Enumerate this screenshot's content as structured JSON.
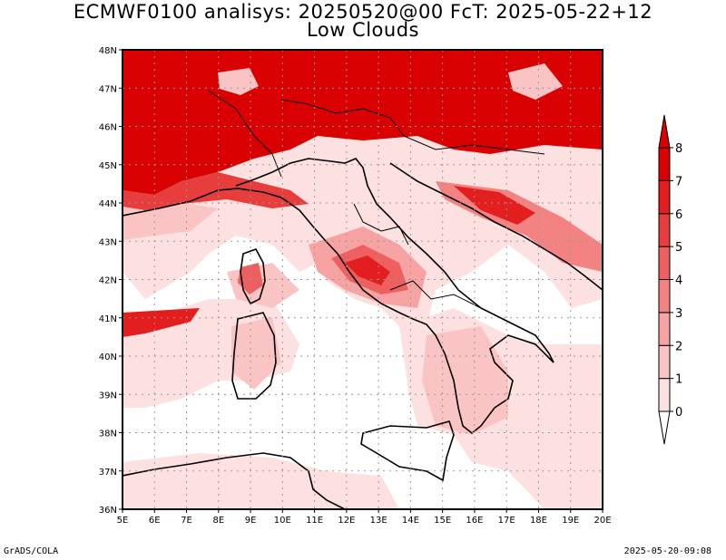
{
  "title": {
    "line1": "ECMWF0100 analisys: 20250520@00 FcT: 2025-05-22+12",
    "line2": "Low Clouds"
  },
  "axes": {
    "x_ticks": [
      "5E",
      "6E",
      "7E",
      "8E",
      "9E",
      "10E",
      "11E",
      "12E",
      "13E",
      "14E",
      "15E",
      "16E",
      "17E",
      "18E",
      "19E",
      "20E"
    ],
    "y_ticks": [
      "36N",
      "37N",
      "38N",
      "39N",
      "40N",
      "41N",
      "42N",
      "43N",
      "44N",
      "45N",
      "46N",
      "47N",
      "48N"
    ],
    "lon_range": [
      5,
      20
    ],
    "lat_range": [
      36,
      48
    ]
  },
  "colorbar": {
    "levels": [
      "0",
      "1",
      "2",
      "3",
      "4",
      "5",
      "6",
      "7",
      "8"
    ],
    "colors": [
      "#ffffff",
      "#fde0e0",
      "#fbc4c4",
      "#f7a3a3",
      "#f38282",
      "#ee5f5f",
      "#e83d3d",
      "#e21e1e",
      "#d80000"
    ]
  },
  "footer": {
    "left": "GrADS/COLA",
    "right": "2025-05-20-09:08"
  }
}
